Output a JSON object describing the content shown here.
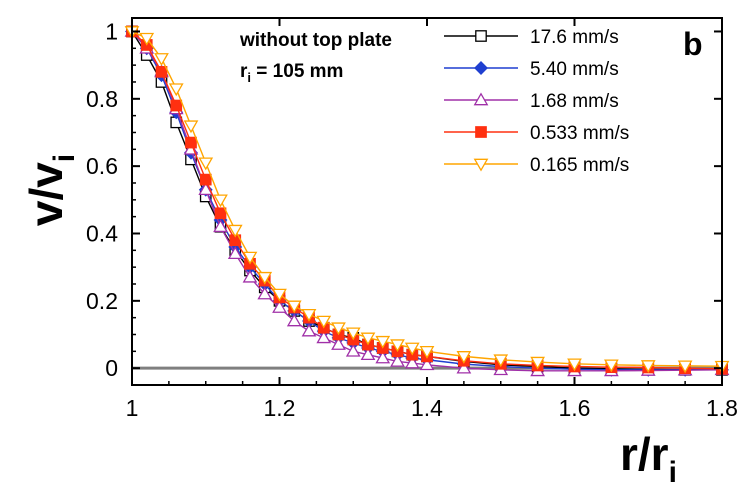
{
  "chart_data": {
    "type": "line",
    "panel_label": "b",
    "annotation": {
      "line1": "without top plate",
      "line2_main": "r",
      "line2_sub": "i",
      "line2_rest": " = 105 mm"
    },
    "xlabel": {
      "main": "r/r",
      "sub": "i"
    },
    "ylabel": {
      "main": "v/v",
      "sub": "i"
    },
    "xlim": [
      1.0,
      1.8
    ],
    "ylim": [
      -0.05,
      1.04
    ],
    "xticks": [
      1,
      1.2,
      1.4,
      1.6,
      1.8
    ],
    "xtick_labels": [
      "1",
      "1.2",
      "1.4",
      "1.6",
      "1.8"
    ],
    "yticks": [
      0,
      0.2,
      0.4,
      0.6,
      0.8,
      1
    ],
    "ytick_labels": [
      "0",
      "0.2",
      "0.4",
      "0.6",
      "0.8",
      "1"
    ],
    "reference_line": {
      "y": 0,
      "color": "#7f7f7f"
    },
    "legend_position": "top-right",
    "series": [
      {
        "name": "17.6 mm/s",
        "color": "#000000",
        "marker": "square-open",
        "x": [
          1.0,
          1.02,
          1.04,
          1.06,
          1.08,
          1.1,
          1.12,
          1.14,
          1.16,
          1.18,
          1.2,
          1.22,
          1.24,
          1.26,
          1.28,
          1.3,
          1.32,
          1.34,
          1.36,
          1.38,
          1.4,
          1.45,
          1.5,
          1.55,
          1.6,
          1.65,
          1.7,
          1.75,
          1.8
        ],
        "y": [
          1.0,
          0.93,
          0.85,
          0.73,
          0.62,
          0.51,
          0.42,
          0.35,
          0.29,
          0.24,
          0.2,
          0.17,
          0.14,
          0.12,
          0.1,
          0.09,
          0.07,
          0.06,
          0.05,
          0.04,
          0.035,
          0.02,
          0.01,
          0.005,
          0.0,
          -0.002,
          -0.004,
          -0.005,
          -0.005
        ]
      },
      {
        "name": "5.40 mm/s",
        "color": "#1f3fd0",
        "marker": "diamond-filled",
        "x": [
          1.0,
          1.02,
          1.04,
          1.06,
          1.08,
          1.1,
          1.12,
          1.14,
          1.16,
          1.18,
          1.2,
          1.22,
          1.24,
          1.26,
          1.28,
          1.3,
          1.32,
          1.34,
          1.36,
          1.38,
          1.4,
          1.45,
          1.5,
          1.55,
          1.6,
          1.65,
          1.7,
          1.75,
          1.8
        ],
        "y": [
          1.0,
          0.95,
          0.87,
          0.76,
          0.64,
          0.53,
          0.44,
          0.36,
          0.3,
          0.25,
          0.2,
          0.17,
          0.14,
          0.11,
          0.09,
          0.075,
          0.06,
          0.05,
          0.04,
          0.03,
          0.025,
          0.012,
          0.005,
          0.0,
          -0.003,
          -0.005,
          -0.005,
          -0.005,
          -0.005
        ]
      },
      {
        "name": "1.68 mm/s",
        "color": "#a030a8",
        "marker": "triangle-up-open",
        "x": [
          1.0,
          1.02,
          1.04,
          1.06,
          1.08,
          1.1,
          1.12,
          1.14,
          1.16,
          1.18,
          1.2,
          1.22,
          1.24,
          1.26,
          1.28,
          1.3,
          1.32,
          1.34,
          1.36,
          1.38,
          1.4,
          1.45,
          1.5,
          1.55,
          1.6,
          1.65,
          1.7,
          1.75,
          1.8
        ],
        "y": [
          1.0,
          0.95,
          0.88,
          0.77,
          0.65,
          0.53,
          0.42,
          0.34,
          0.27,
          0.22,
          0.18,
          0.14,
          0.11,
          0.09,
          0.07,
          0.05,
          0.04,
          0.03,
          0.02,
          0.015,
          0.01,
          0.0,
          -0.005,
          -0.008,
          -0.008,
          -0.008,
          -0.007,
          -0.006,
          -0.005
        ]
      },
      {
        "name": "0.533 mm/s",
        "color": "#ff3010",
        "marker": "square-filled",
        "x": [
          1.0,
          1.02,
          1.04,
          1.06,
          1.08,
          1.1,
          1.12,
          1.14,
          1.16,
          1.18,
          1.2,
          1.22,
          1.24,
          1.26,
          1.28,
          1.3,
          1.32,
          1.34,
          1.36,
          1.38,
          1.4,
          1.45,
          1.5,
          1.55,
          1.6,
          1.65,
          1.7,
          1.75,
          1.8
        ],
        "y": [
          1.0,
          0.96,
          0.88,
          0.78,
          0.67,
          0.56,
          0.46,
          0.38,
          0.31,
          0.26,
          0.21,
          0.18,
          0.15,
          0.12,
          0.1,
          0.085,
          0.07,
          0.06,
          0.05,
          0.04,
          0.035,
          0.022,
          0.013,
          0.008,
          0.005,
          0.003,
          0.002,
          0.0,
          -0.002
        ]
      },
      {
        "name": "0.165 mm/s",
        "color": "#ffa500",
        "marker": "triangle-down-open",
        "x": [
          1.0,
          1.02,
          1.04,
          1.06,
          1.08,
          1.1,
          1.12,
          1.14,
          1.16,
          1.18,
          1.2,
          1.22,
          1.24,
          1.26,
          1.28,
          1.3,
          1.32,
          1.34,
          1.36,
          1.38,
          1.4,
          1.45,
          1.5,
          1.55,
          1.6,
          1.65,
          1.7,
          1.75,
          1.8
        ],
        "y": [
          1.0,
          0.98,
          0.92,
          0.83,
          0.72,
          0.61,
          0.5,
          0.41,
          0.33,
          0.27,
          0.22,
          0.185,
          0.16,
          0.14,
          0.12,
          0.105,
          0.09,
          0.08,
          0.07,
          0.06,
          0.05,
          0.035,
          0.025,
          0.018,
          0.013,
          0.01,
          0.008,
          0.007,
          0.006
        ]
      }
    ]
  }
}
